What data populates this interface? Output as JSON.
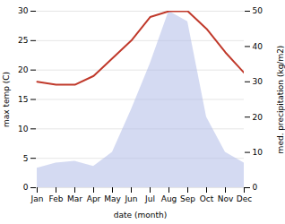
{
  "chart_data": {
    "type": "line",
    "xlabel": "date (month)",
    "ylabel": "max temp (C)",
    "y2label": "med. precipitation (kg/m2)",
    "categories": [
      "Jan",
      "Feb",
      "Mar",
      "Apr",
      "May",
      "Jun",
      "Jul",
      "Aug",
      "Sep",
      "Oct",
      "Nov",
      "Dec"
    ],
    "series": [
      {
        "type": "area",
        "axis": "y2",
        "color": "#b0bce8",
        "values": [
          5.5,
          7,
          7.5,
          6,
          10,
          22,
          35,
          50,
          47,
          20,
          10,
          7
        ]
      },
      {
        "type": "line",
        "color": "#c0392b",
        "values": [
          18,
          17.5,
          17.5,
          19,
          22,
          25,
          29,
          30,
          30,
          27,
          23,
          19.5
        ]
      }
    ],
    "ylim": [
      0,
      30
    ],
    "yticks": [
      0,
      5,
      10,
      15,
      20,
      25,
      30
    ],
    "y2lim": [
      0,
      50
    ],
    "y2ticks": [
      0,
      10,
      20,
      30,
      40,
      50
    ],
    "grid": true
  }
}
